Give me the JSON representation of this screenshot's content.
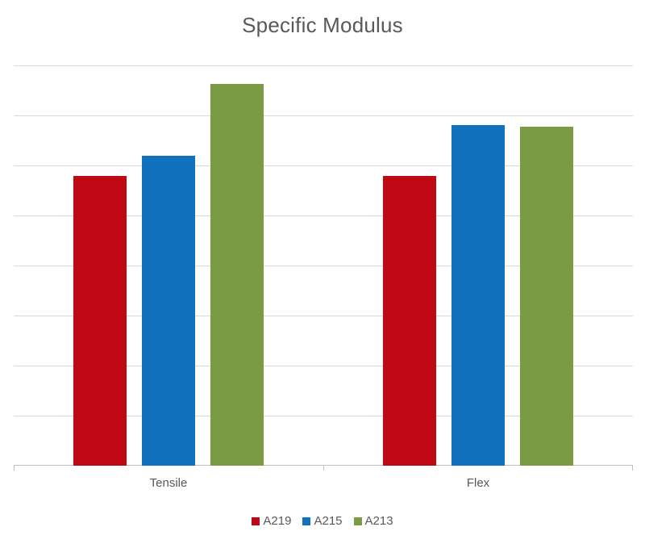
{
  "chart_data": {
    "type": "bar",
    "title": "Specific Modulus",
    "xlabel": "",
    "ylabel": "",
    "categories": [
      "Tensile",
      "Flex"
    ],
    "series": [
      {
        "name": "A219",
        "color": "#C00714",
        "values": [
          5.79,
          5.79
        ]
      },
      {
        "name": "A215",
        "color": "#1271BC",
        "values": [
          6.19,
          6.81
        ]
      },
      {
        "name": "A213",
        "color": "#7A9A44",
        "values": [
          7.63,
          6.77
        ]
      }
    ],
    "ylim": [
      0,
      8
    ],
    "y_tick_labels_visible": false,
    "gridlines": 8,
    "grid": true,
    "legend_position": "bottom"
  }
}
